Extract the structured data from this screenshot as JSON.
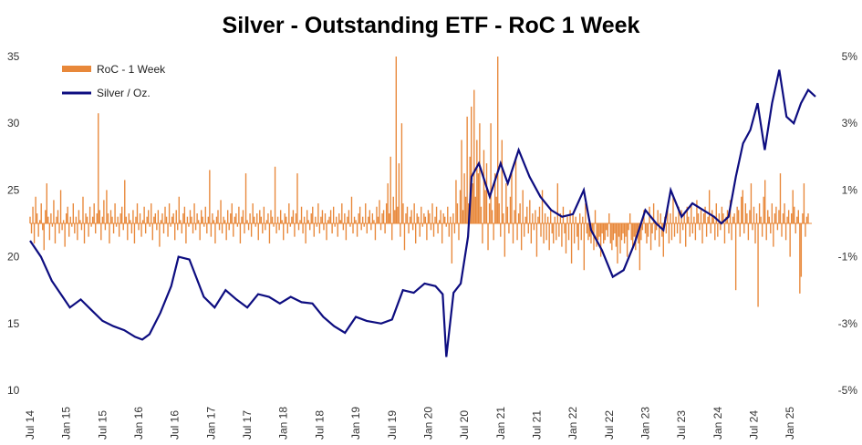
{
  "chart_data": {
    "type": "bar+line",
    "title": "Silver - Outstanding  ETF - RoC 1 Week",
    "colors": {
      "bars": "#e8883a",
      "line": "#0d0d80"
    },
    "legend": {
      "placement": "top-left",
      "entries": [
        "RoC - 1 Week",
        "Silver / Oz."
      ]
    },
    "y_left": {
      "min": 10,
      "max": 35,
      "ticks": [
        "10",
        "15",
        "20",
        "25",
        "30",
        "35"
      ]
    },
    "y_right": {
      "min": -5,
      "max": 5,
      "ticks": [
        "-5%",
        "-3%",
        "-1%",
        "1%",
        "3%",
        "5%"
      ]
    },
    "x_ticks": [
      "Jul 14",
      "Jan 15",
      "Jul 15",
      "Jan 16",
      "Jul 16",
      "Jan 17",
      "Jul 17",
      "Jan 18",
      "Jul 18",
      "Jan 19",
      "Jul 19",
      "Jan 20",
      "Jul 20",
      "Jan 21",
      "Jul 21",
      "Jan 22",
      "Jul 22",
      "Jan 23",
      "Jul 23",
      "Jan 24",
      "Jul 24",
      "Jan 25"
    ],
    "series": [
      {
        "name": "Silver / Oz.",
        "axis": "left",
        "x": [
          2014.5,
          2014.65,
          2014.8,
          2014.95,
          2015.05,
          2015.2,
          2015.35,
          2015.5,
          2015.65,
          2015.8,
          2015.95,
          2016.05,
          2016.15,
          2016.3,
          2016.45,
          2016.55,
          2016.7,
          2016.9,
          2017.05,
          2017.2,
          2017.35,
          2017.5,
          2017.65,
          2017.8,
          2017.95,
          2018.1,
          2018.25,
          2018.4,
          2018.55,
          2018.7,
          2018.85,
          2019.0,
          2019.15,
          2019.35,
          2019.5,
          2019.65,
          2019.8,
          2019.95,
          2020.1,
          2020.2,
          2020.25,
          2020.35,
          2020.45,
          2020.55,
          2020.6,
          2020.7,
          2020.85,
          2021.0,
          2021.1,
          2021.25,
          2021.4,
          2021.55,
          2021.7,
          2021.85,
          2022.0,
          2022.15,
          2022.25,
          2022.4,
          2022.55,
          2022.7,
          2022.85,
          2023.0,
          2023.15,
          2023.25,
          2023.35,
          2023.5,
          2023.65,
          2023.8,
          2023.95,
          2024.05,
          2024.15,
          2024.25,
          2024.35,
          2024.45,
          2024.55,
          2024.65,
          2024.75,
          2024.85,
          2024.95,
          2025.05,
          2025.15,
          2025.25,
          2025.35
        ],
        "values": [
          21.2,
          20.0,
          18.2,
          17.0,
          16.2,
          16.8,
          16.0,
          15.2,
          14.8,
          14.5,
          14.0,
          13.8,
          14.2,
          15.8,
          17.8,
          20.0,
          19.8,
          17.0,
          16.2,
          17.5,
          16.8,
          16.2,
          17.2,
          17.0,
          16.5,
          17.0,
          16.6,
          16.5,
          15.5,
          14.8,
          14.3,
          15.5,
          15.2,
          15.0,
          15.3,
          17.5,
          17.3,
          18.0,
          17.8,
          17.2,
          12.5,
          17.3,
          18.0,
          21.5,
          26.0,
          27.0,
          24.5,
          27.0,
          25.5,
          28.0,
          26.0,
          24.5,
          23.5,
          23.0,
          23.2,
          25.0,
          22.0,
          20.5,
          18.5,
          19.0,
          21.0,
          23.5,
          22.5,
          22.0,
          25.0,
          23.0,
          24.0,
          23.5,
          23.0,
          22.5,
          23.0,
          26.0,
          28.5,
          29.5,
          31.5,
          28.0,
          31.5,
          34.0,
          30.5,
          30.0,
          31.5,
          32.5,
          32.0
        ]
      },
      {
        "name": "RoC - 1 Week",
        "axis": "right",
        "type": "bar",
        "x_start": 2014.5,
        "x_step": 0.01923,
        "values": [
          0.2,
          -0.3,
          0.5,
          -0.6,
          0.8,
          0.3,
          -0.4,
          0.1,
          0.6,
          -0.2,
          -0.8,
          0.4,
          1.2,
          0.2,
          -0.5,
          0.3,
          -0.1,
          0.7,
          -0.6,
          0.2,
          0.4,
          -0.3,
          1.0,
          -0.2,
          0.1,
          -0.7,
          0.3,
          0.5,
          -0.4,
          0.2,
          -0.1,
          0.6,
          -0.3,
          0.2,
          -0.5,
          0.4,
          0.1,
          -0.2,
          0.8,
          -0.6,
          0.3,
          0.2,
          -0.4,
          0.5,
          -0.1,
          0.2,
          0.6,
          -0.3,
          0.3,
          3.3,
          0.4,
          -0.5,
          0.2,
          0.7,
          -0.2,
          1.0,
          0.3,
          -0.6,
          0.4,
          0.2,
          -0.3,
          0.6,
          -0.1,
          0.2,
          -0.4,
          0.3,
          0.5,
          -0.2,
          1.3,
          0.2,
          -0.5,
          0.3,
          0.1,
          -0.3,
          0.4,
          -0.6,
          0.2,
          0.6,
          -0.2,
          0.3,
          -0.4,
          0.1,
          0.5,
          -0.3,
          0.2,
          0.4,
          -0.1,
          0.6,
          -0.5,
          0.2,
          0.3,
          -0.2,
          0.4,
          -0.7,
          0.1,
          0.3,
          -0.3,
          0.5,
          0.2,
          -0.4,
          0.6,
          -0.1,
          0.2,
          0.3,
          -0.5,
          0.4,
          -0.2,
          0.8,
          0.1,
          -0.3,
          0.3,
          0.5,
          -0.6,
          0.2,
          -0.1,
          0.4,
          0.2,
          -0.3,
          0.6,
          -0.2,
          0.3,
          0.1,
          -0.5,
          0.4,
          0.2,
          -0.1,
          0.5,
          -0.3,
          0.2,
          1.6,
          -0.4,
          0.3,
          0.1,
          -0.6,
          0.2,
          0.4,
          -0.2,
          0.7,
          -0.3,
          0.2,
          0.1,
          -0.5,
          0.4,
          -0.2,
          0.3,
          0.6,
          -0.4,
          0.2,
          0.3,
          -0.1,
          0.5,
          -0.6,
          0.2,
          0.4,
          -0.3,
          1.5,
          0.1,
          -0.2,
          0.3,
          -0.4,
          0.6,
          0.2,
          -0.1,
          0.3,
          -0.5,
          0.4,
          0.2,
          -0.3,
          0.5,
          -0.2,
          0.1,
          0.3,
          -0.6,
          0.4,
          0.2,
          -0.1,
          1.7,
          -0.3,
          0.2,
          -0.2,
          0.4,
          0.1,
          -0.5,
          0.3,
          0.2,
          -0.3,
          0.6,
          -0.1,
          0.2,
          0.4,
          -0.4,
          0.3,
          1.5,
          -0.2,
          0.1,
          0.5,
          -0.3,
          0.2,
          -0.6,
          0.4,
          0.1,
          -0.2,
          0.3,
          0.5,
          -0.4,
          0.2,
          -0.1,
          0.6,
          -0.3,
          0.2,
          0.4,
          -0.2,
          0.3,
          -0.5,
          0.1,
          0.2,
          0.4,
          -0.3,
          0.5,
          -0.1,
          0.2,
          -0.4,
          0.3,
          0.1,
          0.6,
          -0.2,
          0.3,
          -0.5,
          0.2,
          0.4,
          -0.1,
          0.8,
          -0.3,
          0.2,
          0.1,
          -0.4,
          0.3,
          0.5,
          -0.2,
          0.2,
          -0.1,
          0.6,
          -0.3,
          0.2,
          0.4,
          -0.2,
          0.3,
          0.1,
          -0.5,
          0.5,
          0.2,
          0.7,
          -0.2,
          0.3,
          0.4,
          -0.3,
          0.6,
          1.2,
          0.3,
          2.0,
          -0.5,
          0.8,
          0.4,
          5.0,
          0.5,
          1.8,
          -0.4,
          3.0,
          0.6,
          -0.8,
          0.3,
          0.5,
          -0.3,
          0.2,
          0.4,
          -0.2,
          0.6,
          -0.6,
          0.3,
          0.2,
          -0.4,
          0.5,
          -0.1,
          0.3,
          0.2,
          -0.5,
          0.4,
          0.3,
          -0.2,
          0.6,
          -0.4,
          0.2,
          0.5,
          -0.3,
          0.1,
          0.4,
          -0.6,
          0.3,
          0.2,
          -0.1,
          0.5,
          -0.4,
          0.2,
          -1.2,
          0.3,
          -0.3,
          1.3,
          0.6,
          -0.5,
          1.0,
          2.5,
          0.4,
          1.5,
          0.8,
          3.2,
          0.6,
          2.0,
          3.5,
          1.2,
          4.0,
          0.8,
          2.5,
          1.5,
          3.0,
          0.5,
          -0.6,
          2.2,
          1.0,
          1.8,
          -0.8,
          0.6,
          3.0,
          0.4,
          -0.5,
          1.5,
          0.8,
          5.0,
          0.6,
          -0.4,
          2.5,
          0.3,
          -1.0,
          1.2,
          0.5,
          -0.3,
          0.8,
          1.5,
          -0.6,
          0.4,
          2.0,
          -0.5,
          0.3,
          0.6,
          -0.8,
          1.0,
          -0.4,
          0.2,
          0.5,
          -0.3,
          0.7,
          -0.6,
          0.3,
          -0.2,
          0.4,
          -1.0,
          0.2,
          0.5,
          -0.4,
          1.0,
          -0.6,
          0.3,
          -0.5,
          0.2,
          -0.8,
          0.4,
          -0.3,
          -0.6,
          0.2,
          -0.5,
          1.2,
          -0.4,
          0.3,
          -0.7,
          0.5,
          -0.3,
          -0.9,
          0.2,
          -0.5,
          0.4,
          -1.2,
          0.3,
          -0.6,
          0.2,
          -0.4,
          -0.8,
          0.3,
          -0.5,
          0.2,
          -1.4,
          0.6,
          -0.3,
          -0.5,
          -0.4,
          -0.6,
          -0.3,
          -0.8,
          0.4,
          -0.7,
          -0.5,
          -0.4,
          -1.0,
          -0.3,
          -0.6,
          -0.5,
          -0.2,
          -0.4,
          0.3,
          -0.6,
          -0.8,
          -0.5,
          -0.3,
          -0.7,
          -1.2,
          -0.4,
          -0.9,
          -0.5,
          -0.3,
          -0.6,
          -0.4,
          -1.0,
          -0.2,
          0.3,
          -0.5,
          -0.7,
          -0.4,
          -0.8,
          -0.3,
          -0.6,
          -1.4,
          -0.5,
          -0.2,
          0.4,
          -0.3,
          -0.6,
          -0.4,
          0.5,
          -0.8,
          -0.3,
          0.6,
          -0.5,
          -0.2,
          0.4,
          -0.7,
          0.3,
          -0.4,
          -1.0,
          0.2,
          -0.3,
          0.5,
          -0.6,
          0.3,
          -0.5,
          0.8,
          -0.4,
          0.2,
          -0.3,
          0.5,
          -0.6,
          0.4,
          -0.2,
          0.3,
          -0.7,
          0.5,
          0.2,
          -0.4,
          0.6,
          -0.3,
          0.2,
          -0.5,
          0.7,
          0.3,
          -0.2,
          0.4,
          -0.6,
          0.3,
          0.5,
          -0.4,
          0.2,
          1.0,
          -0.3,
          0.4,
          0.2,
          -0.5,
          0.6,
          -0.4,
          0.3,
          -0.2,
          0.5,
          0.3,
          -0.6,
          0.2,
          0.4,
          -0.3,
          0.7,
          -0.5,
          0.2,
          0.3,
          -2.0,
          0.5,
          0.4,
          -0.4,
          0.8,
          1.0,
          -0.3,
          0.6,
          0.3,
          -0.5,
          0.4,
          1.2,
          -0.2,
          0.5,
          -0.6,
          0.3,
          -2.5,
          0.6,
          0.2,
          -0.4,
          0.8,
          1.3,
          -0.5,
          0.4,
          0.2,
          -0.3,
          0.6,
          -0.7,
          0.3,
          0.5,
          -0.2,
          0.4,
          1.5,
          -0.4,
          0.3,
          0.6,
          -0.5,
          0.2,
          0.4,
          -1.0,
          0.3,
          1.0,
          0.5,
          -0.3,
          0.2,
          0.4,
          -2.1,
          -1.6,
          0.3,
          1.2,
          -0.4,
          0.2,
          0.3
        ]
      }
    ]
  }
}
